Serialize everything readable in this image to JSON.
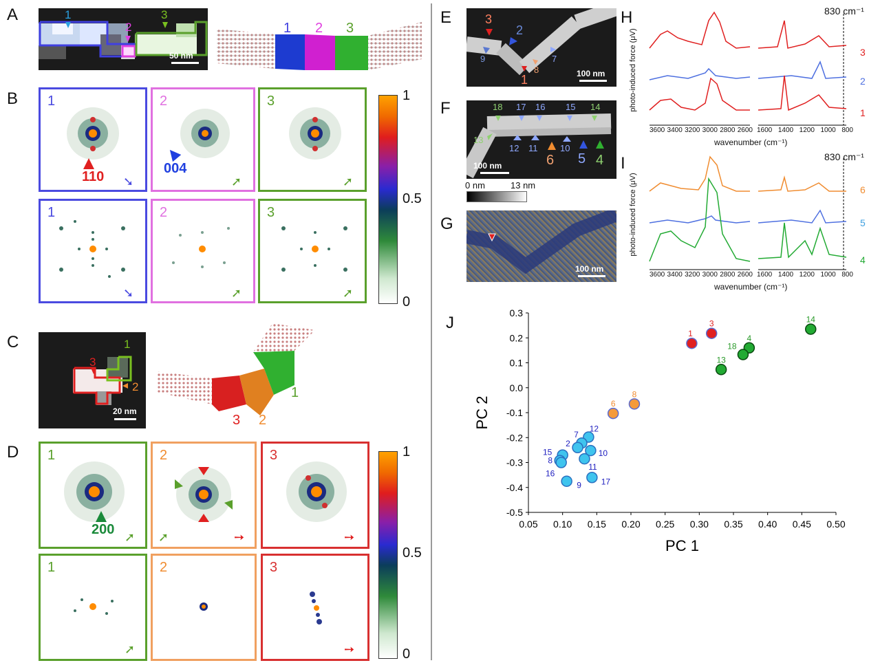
{
  "panels": {
    "a": {
      "label": "A",
      "markers": [
        "1",
        "2",
        "3"
      ],
      "scalebar": "50 nm",
      "model_labels": [
        "1",
        "2",
        "3"
      ]
    },
    "b": {
      "label": "B",
      "frame_numbers": [
        "1",
        "2",
        "3",
        "1",
        "2",
        "3"
      ],
      "annot_110": "110",
      "annot_004": "004",
      "colorbar": {
        "top": "1",
        "mid": "0.5",
        "bottom": "0"
      }
    },
    "c": {
      "label": "C",
      "markers": [
        "1",
        "3",
        "2"
      ],
      "scalebar": "20 nm",
      "model_labels": [
        "1",
        "3",
        "2"
      ]
    },
    "d": {
      "label": "D",
      "frame_numbers": [
        "1",
        "2",
        "3",
        "1",
        "2",
        "3"
      ],
      "annot_200": "200",
      "colorbar": {
        "top": "1",
        "mid": "0.5",
        "bottom": "0"
      }
    },
    "e": {
      "label": "E",
      "markers": [
        "3",
        "2",
        "9",
        "1",
        "8",
        "7"
      ],
      "scalebar": "100 nm"
    },
    "f": {
      "label": "F",
      "markers": [
        "18",
        "17",
        "16",
        "15",
        "14",
        "13",
        "12",
        "11",
        "10",
        "6",
        "5",
        "4"
      ],
      "scalebar": "100 nm",
      "height_min": "0 nm",
      "height_max": "13 nm"
    },
    "g": {
      "label": "G",
      "scalebar": "100 nm"
    },
    "h": {
      "label": "H",
      "ylabel": "photo-induced force (μV)",
      "xlabel": "wavenumber (cm⁻¹)",
      "annotation": "830 cm⁻¹",
      "ticks_left": [
        "3600",
        "3400",
        "3200",
        "3000",
        "2800",
        "2600"
      ],
      "ticks_right": [
        "1600",
        "1400",
        "1200",
        "1000",
        "800"
      ],
      "traces": [
        "3",
        "2",
        "1"
      ]
    },
    "i": {
      "label": "I",
      "ylabel": "photo-induced force (μV)",
      "xlabel": "wavenumber (cm⁻¹)",
      "annotation": "830 cm⁻¹",
      "ticks_left": [
        "3600",
        "3400",
        "3200",
        "3000",
        "2800",
        "2600"
      ],
      "ticks_right": [
        "1600",
        "1400",
        "1200",
        "1000",
        "800"
      ],
      "traces": [
        "6",
        "5",
        "4"
      ]
    },
    "j": {
      "label": "J"
    }
  },
  "colors": {
    "blue": "#4040e0",
    "magenta": "#e040e0",
    "green": "#5aa02c",
    "red": "#e02020",
    "orange": "#f08c30",
    "cyan": "#3fc4ee",
    "darkgreen": "#22aa33"
  },
  "chart_data": {
    "type": "scatter",
    "xlabel": "PC 1",
    "ylabel": "PC 2",
    "xlim": [
      0.05,
      0.5
    ],
    "ylim": [
      -0.5,
      0.3
    ],
    "xticks": [
      "0.05",
      "0.10",
      "0.15",
      "0.20",
      "0.25",
      "0.30",
      "0.35",
      "0.40",
      "0.45",
      "0.50"
    ],
    "yticks": [
      "0.3",
      "0.2",
      "0.1",
      "0.0",
      "-0.1",
      "-0.2",
      "-0.3",
      "-0.4",
      "-0.5"
    ],
    "points": [
      {
        "label": "1",
        "x": 0.289,
        "y": 0.178,
        "group": "red"
      },
      {
        "label": "3",
        "x": 0.318,
        "y": 0.218,
        "group": "red"
      },
      {
        "label": "14",
        "x": 0.463,
        "y": 0.235,
        "group": "green"
      },
      {
        "label": "4",
        "x": 0.373,
        "y": 0.16,
        "group": "green"
      },
      {
        "label": "18",
        "x": 0.364,
        "y": 0.133,
        "group": "green"
      },
      {
        "label": "13",
        "x": 0.332,
        "y": 0.073,
        "group": "green"
      },
      {
        "label": "8",
        "x": 0.205,
        "y": -0.065,
        "group": "orange"
      },
      {
        "label": "6",
        "x": 0.174,
        "y": -0.103,
        "group": "orange"
      },
      {
        "label": "12",
        "x": 0.138,
        "y": -0.198,
        "group": "cyan"
      },
      {
        "label": "7",
        "x": 0.128,
        "y": -0.222,
        "group": "cyan"
      },
      {
        "label": "2",
        "x": 0.122,
        "y": -0.24,
        "group": "cyan"
      },
      {
        "label": "10",
        "x": 0.141,
        "y": -0.252,
        "group": "cyan"
      },
      {
        "label": "15",
        "x": 0.1,
        "y": -0.27,
        "group": "cyan"
      },
      {
        "label": "11",
        "x": 0.132,
        "y": -0.285,
        "group": "cyan"
      },
      {
        "label": "8",
        "x": 0.096,
        "y": -0.292,
        "group": "cyan"
      },
      {
        "label": "16",
        "x": 0.098,
        "y": -0.3,
        "group": "cyan"
      },
      {
        "label": "17",
        "x": 0.143,
        "y": -0.36,
        "group": "cyan"
      },
      {
        "label": "9",
        "x": 0.106,
        "y": -0.375,
        "group": "cyan"
      }
    ]
  }
}
